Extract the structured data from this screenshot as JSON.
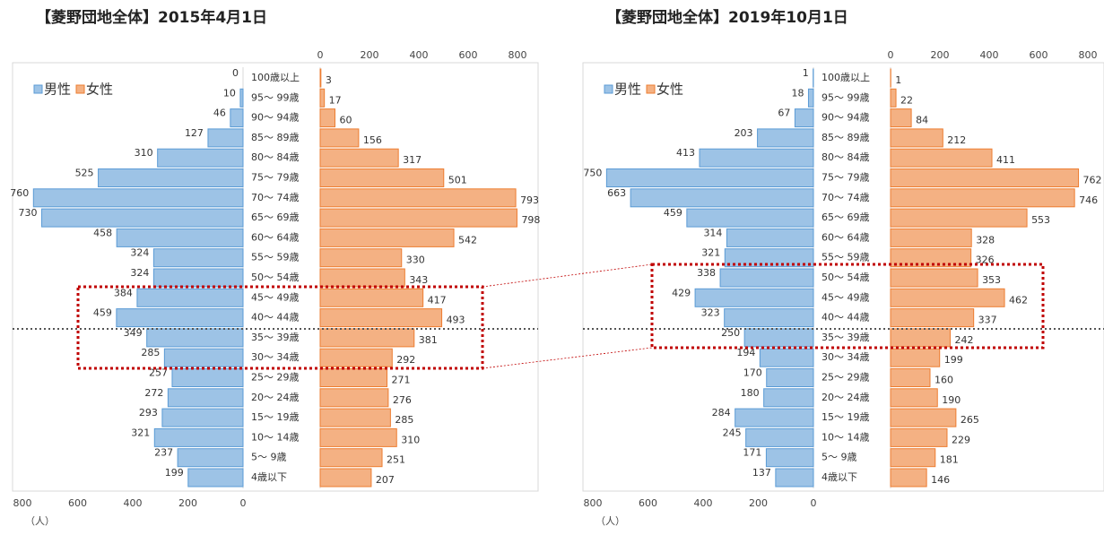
{
  "chart_data": [
    {
      "type": "pyramid",
      "title": "【菱野団地全体】2015年4月1日",
      "xlabel": "（人）",
      "categories": [
        "100歳以上",
        "95～ 99歳",
        "90～ 94歳",
        "85～ 89歳",
        "80～ 84歳",
        "75～ 79歳",
        "70～ 74歳",
        "65～ 69歳",
        "60～ 64歳",
        "55～ 59歳",
        "50～ 54歳",
        "45～ 49歳",
        "40～ 44歳",
        "35～ 39歳",
        "30～ 34歳",
        "25～ 29歳",
        "20～ 24歳",
        "15～ 19歳",
        "10～ 14歳",
        "5～ 9歳",
        "4歳以下"
      ],
      "series": [
        {
          "name": "男性",
          "color": "#9dc3e6",
          "edgecolor": "#5b9bd5",
          "values": [
            0,
            10,
            46,
            127,
            310,
            525,
            760,
            730,
            458,
            324,
            324,
            384,
            459,
            349,
            285,
            257,
            272,
            293,
            321,
            237,
            199
          ]
        },
        {
          "name": "女性",
          "color": "#f4b183",
          "edgecolor": "#ed7d31",
          "values": [
            3,
            17,
            60,
            156,
            317,
            501,
            793,
            798,
            542,
            330,
            343,
            417,
            493,
            381,
            292,
            271,
            276,
            285,
            310,
            251,
            207
          ]
        }
      ],
      "xlim": [
        0,
        800
      ],
      "xticks": [
        0,
        200,
        400,
        600,
        800
      ]
    },
    {
      "type": "pyramid",
      "title": "【菱野団地全体】2019年10月1日",
      "xlabel": "（人）",
      "categories": [
        "100歳以上",
        "95～ 99歳",
        "90～ 94歳",
        "85～ 89歳",
        "80～ 84歳",
        "75～ 79歳",
        "70～ 74歳",
        "65～ 69歳",
        "60～ 64歳",
        "55～ 59歳",
        "50～ 54歳",
        "45～ 49歳",
        "40～ 44歳",
        "35～ 39歳",
        "30～ 34歳",
        "25～ 29歳",
        "20～ 24歳",
        "15～ 19歳",
        "10～ 14歳",
        "5～ 9歳",
        "4歳以下"
      ],
      "series": [
        {
          "name": "男性",
          "color": "#9dc3e6",
          "edgecolor": "#5b9bd5",
          "values": [
            1,
            18,
            67,
            203,
            413,
            750,
            663,
            459,
            314,
            321,
            338,
            429,
            323,
            250,
            194,
            170,
            180,
            284,
            245,
            171,
            137
          ]
        },
        {
          "name": "女性",
          "color": "#f4b183",
          "edgecolor": "#ed7d31",
          "values": [
            1,
            22,
            84,
            212,
            411,
            762,
            746,
            553,
            328,
            326,
            353,
            462,
            337,
            242,
            199,
            160,
            190,
            265,
            229,
            181,
            146
          ]
        }
      ],
      "xlim": [
        0,
        800
      ],
      "xticks": [
        0,
        200,
        400,
        600,
        800
      ]
    }
  ]
}
